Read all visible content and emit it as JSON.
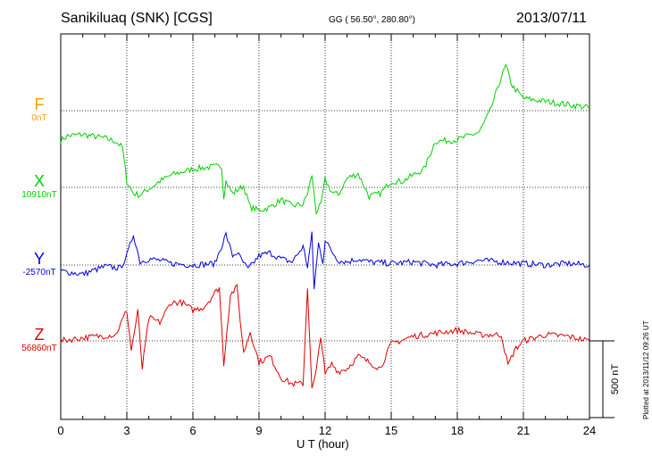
{
  "header": {
    "station": "Sanikiluaq (SNK)  [CGS]",
    "coords": "GG ( 56.50°, 280.80°)",
    "date": "2013/07/11"
  },
  "plotted_note": "Plotted at 2013/11/12 09:26 UT",
  "chart_data": {
    "type": "line",
    "xlabel": "U T (hour)",
    "xlim": [
      0,
      24
    ],
    "x_ticks": [
      "0",
      "3",
      "6",
      "9",
      "12",
      "15",
      "18",
      "21",
      "24"
    ],
    "scale_bar_label": "500 nT",
    "scale_bar_nT": 500,
    "colors": {
      "F": "#f5a000",
      "X": "#00d000",
      "Y": "#0000e0",
      "Z": "#e00000"
    },
    "series": [
      {
        "name": "F",
        "baseline": "0nT",
        "x": [],
        "values": []
      },
      {
        "name": "X",
        "baseline": "10910nT",
        "x": [
          0,
          0.3,
          1,
          2,
          2.5,
          2.8,
          3,
          3.3,
          3.6,
          4.5,
          5,
          6,
          7.3,
          7.4,
          7.5,
          7.8,
          8.3,
          8.6,
          9,
          9.5,
          10,
          10.5,
          11,
          11.2,
          11.4,
          11.6,
          11.8,
          12,
          12.3,
          12.6,
          13,
          13.5,
          14,
          14.5,
          15,
          15.5,
          16.5,
          17,
          18,
          19,
          19.5,
          20,
          20.2,
          20.5,
          21,
          22,
          23,
          24
        ],
        "values": [
          305,
          335,
          345,
          320,
          300,
          260,
          40,
          -40,
          -50,
          40,
          80,
          120,
          140,
          -60,
          40,
          -40,
          10,
          -130,
          -150,
          -130,
          -80,
          -120,
          -110,
          -40,
          80,
          -160,
          -120,
          50,
          -30,
          -50,
          60,
          90,
          -60,
          -40,
          40,
          40,
          120,
          300,
          310,
          360,
          500,
          720,
          790,
          660,
          580,
          560,
          540,
          520
        ]
      },
      {
        "name": "Y",
        "baseline": "-2570nT",
        "x": [
          0,
          1,
          2,
          2.7,
          3,
          3.3,
          3.6,
          4,
          4.5,
          5,
          6,
          7,
          7.5,
          7.8,
          8,
          8.5,
          9,
          9.5,
          10,
          10.5,
          11,
          11.2,
          11.4,
          11.5,
          11.7,
          11.9,
          12,
          12.3,
          12.6,
          13,
          13.5,
          14,
          15,
          16,
          17,
          18,
          19,
          20,
          21,
          22,
          23,
          24
        ],
        "values": [
          -40,
          -60,
          -10,
          -20,
          60,
          200,
          20,
          40,
          30,
          10,
          0,
          10,
          200,
          60,
          80,
          -30,
          60,
          80,
          40,
          20,
          120,
          -10,
          200,
          -150,
          140,
          20,
          160,
          90,
          30,
          20,
          40,
          20,
          10,
          20,
          0,
          10,
          30,
          20,
          10,
          0,
          10,
          0
        ]
      },
      {
        "name": "Z",
        "baseline": "56860nT",
        "x": [
          0,
          1,
          2.5,
          3,
          3.2,
          3.5,
          3.7,
          4,
          4.5,
          5,
          5.5,
          6,
          6.5,
          7.2,
          7.4,
          7.7,
          8,
          8.3,
          8.6,
          9,
          9.5,
          10,
          10.5,
          11,
          11.2,
          11.4,
          11.6,
          11.8,
          12,
          12.3,
          12.6,
          13,
          13.5,
          14,
          14.5,
          15,
          16,
          17,
          18,
          19,
          20,
          20.3,
          20.6,
          21,
          22,
          23,
          24
        ],
        "values": [
          0,
          20,
          40,
          200,
          -60,
          190,
          -180,
          150,
          120,
          250,
          250,
          200,
          220,
          350,
          -150,
          300,
          350,
          -80,
          60,
          -140,
          -100,
          -240,
          -280,
          -280,
          350,
          -320,
          -200,
          40,
          -220,
          -150,
          -200,
          -180,
          -100,
          -140,
          -180,
          -20,
          30,
          50,
          70,
          40,
          40,
          -160,
          -60,
          0,
          40,
          30,
          0
        ]
      }
    ]
  }
}
